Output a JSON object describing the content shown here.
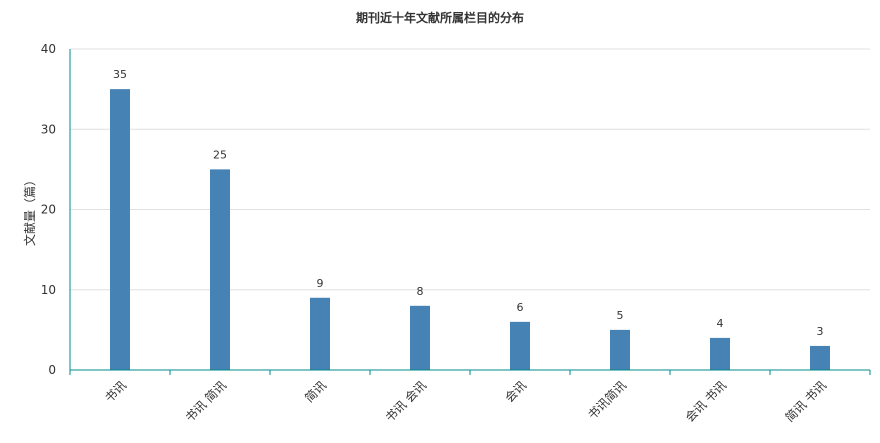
{
  "chart_data": {
    "type": "bar",
    "title": "期刊近十年文献所属栏目的分布",
    "xlabel": "",
    "ylabel": "文献量（篇）",
    "categories": [
      "书讯",
      "书讯 简讯",
      "简讯",
      "书讯 会讯",
      "会讯",
      "书讯简讯",
      "会讯 书讯",
      "简讯 书讯"
    ],
    "values": [
      35,
      25,
      9,
      8,
      6,
      5,
      4,
      3
    ],
    "ylim": [
      0,
      40
    ],
    "yticks": [
      0,
      10,
      20,
      30,
      40
    ],
    "grid": true,
    "data_labels": true,
    "legend": "none",
    "colors": {
      "bar": "#4682b4",
      "axis": "#008b8b",
      "grid": "#e0e0e0",
      "text": "#333333"
    }
  }
}
